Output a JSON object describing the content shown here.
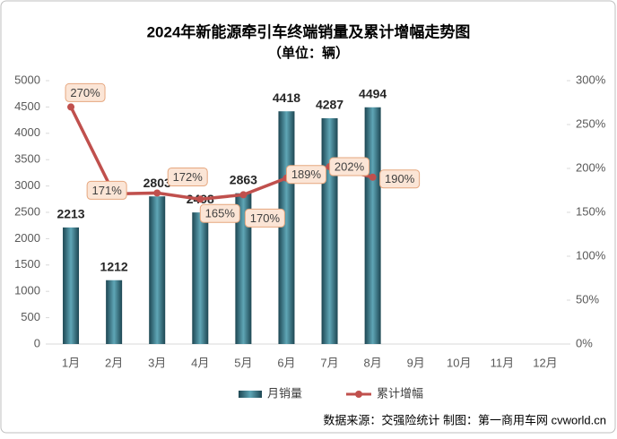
{
  "chart_data": {
    "type": "bar_line",
    "title": "2024年新能源牵引车终端销量及累计增幅走势图",
    "subtitle": "（单位：辆）",
    "footer": "数据来源：交强险统计  制图：第一商用车网 cvworld.cn",
    "categories": [
      "1月",
      "2月",
      "3月",
      "4月",
      "5月",
      "6月",
      "7月",
      "8月",
      "9月",
      "10月",
      "11月",
      "12月"
    ],
    "series": [
      {
        "name": "月销量",
        "type": "bar",
        "color": "#2e6b7a",
        "values": [
          2213,
          1212,
          2803,
          2498,
          2863,
          4418,
          4287,
          4494,
          null,
          null,
          null,
          null
        ]
      },
      {
        "name": "累计增幅",
        "type": "line",
        "axis": "y2",
        "color": "#c0504d",
        "values": [
          270,
          171,
          172,
          165,
          170,
          189,
          202,
          190,
          null,
          null,
          null,
          null
        ],
        "value_labels": [
          "270%",
          "171%",
          "172%",
          "165%",
          "170%",
          "189%",
          "202%",
          "190%",
          null,
          null,
          null,
          null
        ]
      }
    ],
    "ylim": [
      0,
      5000
    ],
    "yticks": [
      0,
      500,
      1000,
      1500,
      2000,
      2500,
      3000,
      3500,
      4000,
      4500,
      5000
    ],
    "y2lim": [
      0,
      300
    ],
    "y2ticks": [
      {
        "value": 0,
        "label": "0%"
      },
      {
        "value": 50,
        "label": "50%"
      },
      {
        "value": 100,
        "label": "100%"
      },
      {
        "value": 150,
        "label": "150%"
      },
      {
        "value": 200,
        "label": "200%"
      },
      {
        "value": 250,
        "label": "250%"
      },
      {
        "value": 300,
        "label": "300%"
      }
    ],
    "legend": "bottom"
  }
}
